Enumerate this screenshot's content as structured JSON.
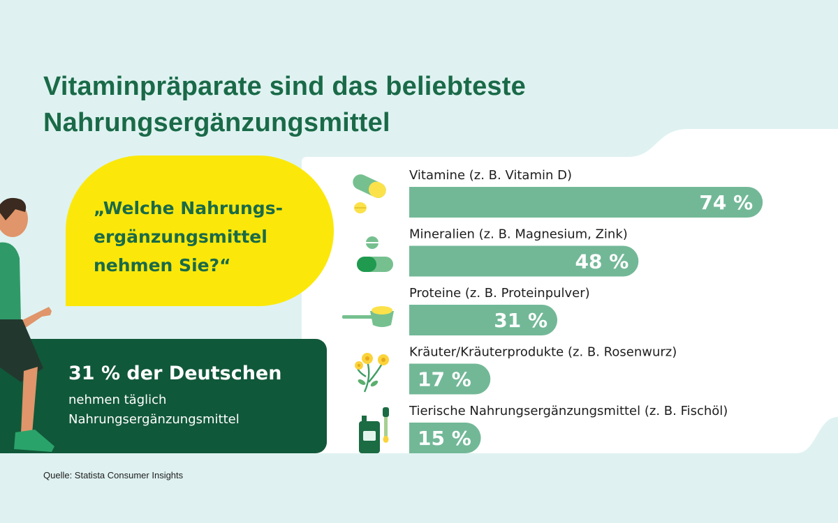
{
  "title_lines": [
    "Vitaminpräparate sind das beliebteste",
    "Nahrungsergänzungsmittel"
  ],
  "question_lines": [
    "„Welche Nahrungs-",
    "ergänzungsmittel",
    "nehmen Sie?“"
  ],
  "stat": {
    "headline": "31 % der Deutschen",
    "lines": [
      "nehmen täglich",
      "Nahrungsergänzungsmittel"
    ]
  },
  "source": "Quelle: Statista Consumer Insights",
  "colors": {
    "background": "#dff2f1",
    "bar": "#72b897",
    "title": "#1a6a48",
    "bubble": "#fbe80a",
    "stat_box": "#10583a"
  },
  "chart_data": {
    "type": "bar",
    "orientation": "horizontal",
    "categories": [
      "Vitamine (z. B. Vitamin D)",
      "Mineralien (z. B. Magnesium, Zink)",
      "Proteine (z. B. Proteinpulver)",
      "Kräuter/Kräuterprodukte (z. B. Rosenwurz)",
      "Tierische Nahrungsergänzungsmittel (z. B. Fischöl)"
    ],
    "values": [
      74,
      48,
      31,
      17,
      15
    ],
    "value_labels": [
      "74 %",
      "48 %",
      "31 %",
      "17 %",
      "15 %"
    ],
    "icons": [
      "capsule-icon",
      "mineral-pills-icon",
      "protein-scoop-icon",
      "herb-flower-icon",
      "fish-oil-bottle-icon"
    ],
    "unit": "%",
    "xlim": [
      0,
      100
    ],
    "grid": false,
    "legend": "none"
  }
}
